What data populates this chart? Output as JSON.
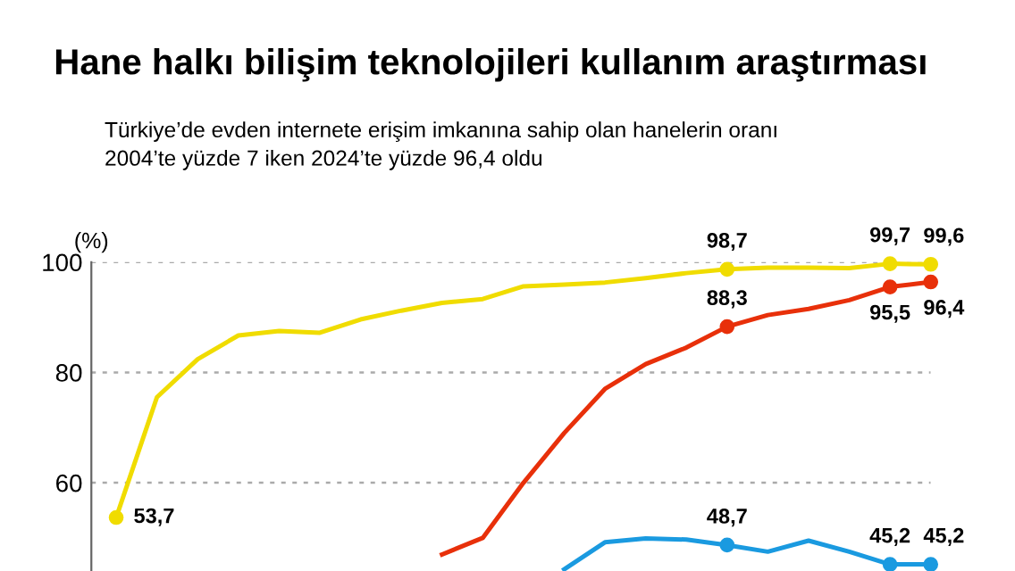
{
  "chart_data": {
    "type": "line",
    "title": "Hane halkı bilişim teknolojileri kullanım araştırması",
    "subtitle": "Türkiye’de evden internete erişim imkanına sahip olan hanelerin oranı\n2004’te yüzde 7 iken 2024’te yüzde 96,4 oldu",
    "ylabel": "(%)",
    "categories": [
      null,
      null,
      null,
      null,
      null,
      null,
      null,
      null,
      null,
      null,
      null,
      null,
      null,
      null,
      null,
      null,
      null,
      null,
      null,
      null,
      null
    ],
    "series": [
      {
        "color": "#f0dc00",
        "values": [
          53.7,
          75.5,
          82.4,
          86.7,
          87.5,
          87.2,
          89.6,
          91.2,
          92.6,
          93.3,
          95.6,
          95.9,
          96.3,
          97.1,
          98.0,
          98.7,
          99.0,
          99.0,
          98.9,
          99.7,
          99.6
        ],
        "value_labels": [
          "53,7",
          null,
          null,
          null,
          null,
          null,
          null,
          null,
          null,
          null,
          null,
          null,
          null,
          null,
          null,
          "98,7",
          null,
          null,
          null,
          "99,7",
          "99,6"
        ]
      },
      {
        "color": "#e8300a",
        "values": [
          null,
          null,
          null,
          null,
          null,
          null,
          null,
          null,
          47.0,
          50.0,
          60.0,
          69.0,
          77.0,
          81.5,
          84.5,
          88.3,
          90.4,
          91.5,
          93.1,
          95.5,
          96.4
        ],
        "value_labels": [
          null,
          null,
          null,
          null,
          null,
          null,
          null,
          null,
          null,
          null,
          null,
          null,
          null,
          null,
          null,
          "88,3",
          null,
          null,
          null,
          "95,5",
          "96,4"
        ]
      },
      {
        "color": "#1a9ae0",
        "values": [
          null,
          null,
          null,
          null,
          null,
          null,
          null,
          null,
          null,
          null,
          null,
          44.3,
          49.2,
          49.9,
          49.7,
          48.7,
          47.5,
          49.5,
          47.5,
          45.2,
          45.2
        ],
        "value_labels": [
          null,
          null,
          null,
          null,
          null,
          null,
          null,
          null,
          null,
          null,
          null,
          null,
          null,
          null,
          null,
          "48,7",
          null,
          null,
          null,
          "45,2",
          "45,2"
        ]
      }
    ],
    "ylim": [
      44,
      100
    ],
    "yticks": [
      60,
      80,
      100
    ],
    "grid": "y",
    "line_style": "solid"
  }
}
